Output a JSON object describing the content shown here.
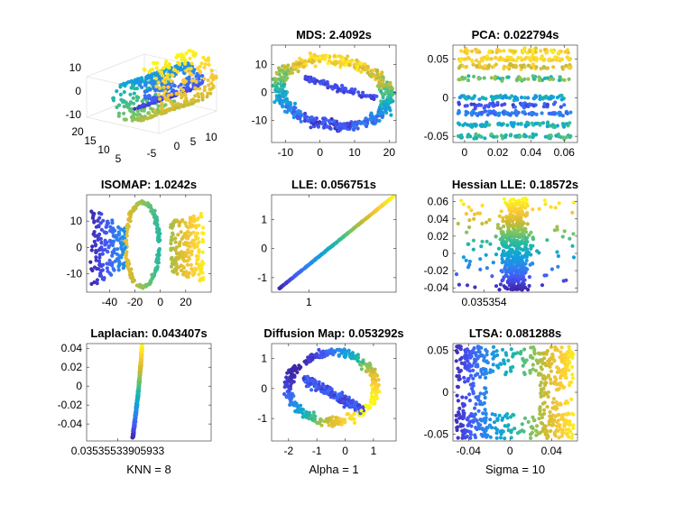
{
  "chart_data": [
    {
      "type": "scatter",
      "title": "",
      "view": "3d",
      "points_shown": "swiss-roll",
      "x_ticks": [
        "20",
        "15",
        "10",
        "5"
      ],
      "z_ticks": [
        "10",
        "0",
        "-10"
      ],
      "y_ticks": [
        "-5",
        "0",
        "5",
        "10"
      ],
      "xlabel": ""
    },
    {
      "type": "scatter",
      "title": "MDS: 2.4092s",
      "shape": "ring",
      "xlim": [
        -14,
        22
      ],
      "ylim": [
        -18,
        17
      ],
      "x_ticks": [
        -10,
        0,
        10,
        20
      ],
      "y_ticks": [
        -10,
        0,
        10
      ],
      "xlabel": ""
    },
    {
      "type": "scatter",
      "title": "PCA: 0.022794s",
      "shape": "bands",
      "xlim": [
        -0.007,
        0.068
      ],
      "ylim": [
        -0.058,
        0.068
      ],
      "x_ticks": [
        0,
        0.02,
        0.04,
        0.06
      ],
      "y_ticks": [
        -0.05,
        0,
        0.05
      ],
      "xlabel": ""
    },
    {
      "type": "scatter",
      "title": "ISOMAP: 1.0242s",
      "shape": "hole",
      "xlim": [
        -58,
        40
      ],
      "ylim": [
        -17,
        20
      ],
      "x_ticks": [
        -40,
        -20,
        0,
        20
      ],
      "y_ticks": [
        -10,
        0,
        10
      ],
      "xlabel": ""
    },
    {
      "type": "scatter",
      "title": "LLE: 0.056751s",
      "shape": "line",
      "xlim": [
        0.7,
        1.7
      ],
      "ylim": [
        -1.5,
        1.85
      ],
      "x_ticks": [
        1
      ],
      "y_ticks": [
        -1,
        0,
        1
      ],
      "xlabel": ""
    },
    {
      "type": "scatter",
      "title": "Hessian LLE: 0.18572s",
      "shape": "column",
      "xlim": [
        -1,
        1
      ],
      "ylim": [
        -0.045,
        0.068
      ],
      "x_tick_labels": [
        "0.035354"
      ],
      "y_ticks": [
        -0.04,
        -0.02,
        0,
        0.02,
        0.04,
        0.06
      ],
      "xlabel": ""
    },
    {
      "type": "scatter",
      "title": "Laplacian: 0.043407s",
      "shape": "curve",
      "xlim": [
        -1,
        1
      ],
      "ylim": [
        -0.058,
        0.045
      ],
      "x_tick_labels": [
        "0.03535533905933"
      ],
      "y_ticks": [
        -0.04,
        -0.02,
        0,
        0.02,
        0.04
      ],
      "xlabel": "KNN = 8"
    },
    {
      "type": "scatter",
      "title": "Diffusion Map: 0.053292s",
      "shape": "loop",
      "xlim": [
        -2.6,
        1.8
      ],
      "ylim": [
        -1.75,
        1.5
      ],
      "x_ticks": [
        -2,
        -1,
        0,
        1
      ],
      "y_ticks": [
        -1,
        0,
        1
      ],
      "xlabel": "Alpha = 1"
    },
    {
      "type": "scatter",
      "title": "LTSA: 0.081288s",
      "shape": "frame",
      "xlim": [
        -0.055,
        0.065
      ],
      "ylim": [
        -0.058,
        0.058
      ],
      "x_ticks": [
        -0.04,
        0,
        0.04
      ],
      "y_ticks": [
        -0.05,
        0,
        0.05
      ],
      "xlabel": "Sigma = 10"
    }
  ]
}
